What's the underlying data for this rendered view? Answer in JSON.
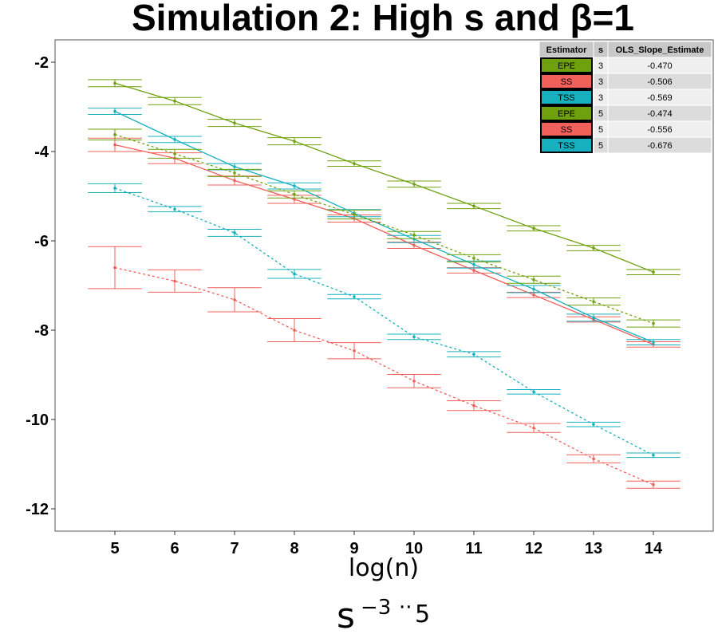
{
  "chart_data": {
    "type": "line",
    "title": "Simulation 2: High s and β=1",
    "xlabel": "log(n)",
    "ylabel": "",
    "x": [
      5,
      6,
      7,
      8,
      9,
      10,
      11,
      12,
      13,
      14
    ],
    "xlim": [
      4,
      15
    ],
    "ylim": [
      -12.5,
      -1.5
    ],
    "yticks": [
      -2,
      -4,
      -6,
      -8,
      -10,
      -12
    ],
    "grid": false,
    "legend": {
      "prefix": "s",
      "sup": "3",
      "separator": "··",
      "value": "5",
      "position": "bottom"
    },
    "series": [
      {
        "name": "EPE",
        "s": 3,
        "color": "#6fa10e",
        "dashed": false,
        "values": [
          -2.47,
          -2.87,
          -3.36,
          -3.77,
          -4.27,
          -4.73,
          -5.22,
          -5.72,
          -6.16,
          -6.7
        ],
        "err": [
          0.08,
          0.08,
          0.08,
          0.08,
          0.06,
          0.07,
          0.06,
          0.06,
          0.06,
          0.06
        ]
      },
      {
        "name": "SS",
        "s": 3,
        "color": "#f2605b",
        "dashed": false,
        "values": [
          -3.85,
          -4.15,
          -4.65,
          -5.07,
          -5.5,
          -6.1,
          -6.66,
          -7.21,
          -7.76,
          -8.32
        ],
        "err": [
          0.15,
          0.12,
          0.1,
          0.09,
          0.08,
          0.07,
          0.06,
          0.06,
          0.06,
          0.06
        ]
      },
      {
        "name": "TSS",
        "s": 3,
        "color": "#17b0bf",
        "dashed": false,
        "values": [
          -3.1,
          -3.73,
          -4.34,
          -4.77,
          -5.38,
          -5.96,
          -6.53,
          -7.08,
          -7.72,
          -8.27
        ],
        "err": [
          0.07,
          0.07,
          0.07,
          0.07,
          0.08,
          0.08,
          0.08,
          0.08,
          0.08,
          0.06
        ]
      },
      {
        "name": "EPE",
        "s": 5,
        "color": "#6fa10e",
        "dashed": true,
        "values": [
          -3.62,
          -4.05,
          -4.48,
          -4.96,
          -5.41,
          -5.87,
          -6.39,
          -6.87,
          -7.36,
          -7.85
        ],
        "err": [
          0.12,
          0.1,
          0.08,
          0.08,
          0.1,
          0.08,
          0.08,
          0.08,
          0.08,
          0.08
        ]
      },
      {
        "name": "SS",
        "s": 5,
        "color": "#f2605b",
        "dashed": true,
        "values": [
          -6.6,
          -6.9,
          -7.32,
          -8.0,
          -8.46,
          -9.14,
          -9.69,
          -10.19,
          -10.88,
          -11.46
        ],
        "err": [
          0.47,
          0.25,
          0.27,
          0.26,
          0.18,
          0.15,
          0.11,
          0.1,
          0.09,
          0.08
        ]
      },
      {
        "name": "TSS",
        "s": 5,
        "color": "#17b0bf",
        "dashed": true,
        "values": [
          -4.82,
          -5.29,
          -5.82,
          -6.74,
          -7.25,
          -8.15,
          -8.54,
          -9.38,
          -10.11,
          -10.8
        ],
        "err": [
          0.1,
          0.06,
          0.08,
          0.1,
          0.05,
          0.06,
          0.06,
          0.05,
          0.05,
          0.05
        ]
      }
    ],
    "table": {
      "headers": [
        "Estimator",
        "s",
        "OLS_Slope_Estimate"
      ],
      "rows": [
        {
          "estimator": "EPE",
          "s": "3",
          "slope": "-0.470",
          "color": "#6fa10e"
        },
        {
          "estimator": "SS",
          "s": "3",
          "slope": "-0.506",
          "color": "#f2605b"
        },
        {
          "estimator": "TSS",
          "s": "3",
          "slope": "-0.569",
          "color": "#17b0bf"
        },
        {
          "estimator": "EPE",
          "s": "5",
          "slope": "-0.474",
          "color": "#6fa10e"
        },
        {
          "estimator": "SS",
          "s": "5",
          "slope": "-0.556",
          "color": "#f2605b"
        },
        {
          "estimator": "TSS",
          "s": "5",
          "slope": "-0.676",
          "color": "#17b0bf"
        }
      ]
    }
  }
}
